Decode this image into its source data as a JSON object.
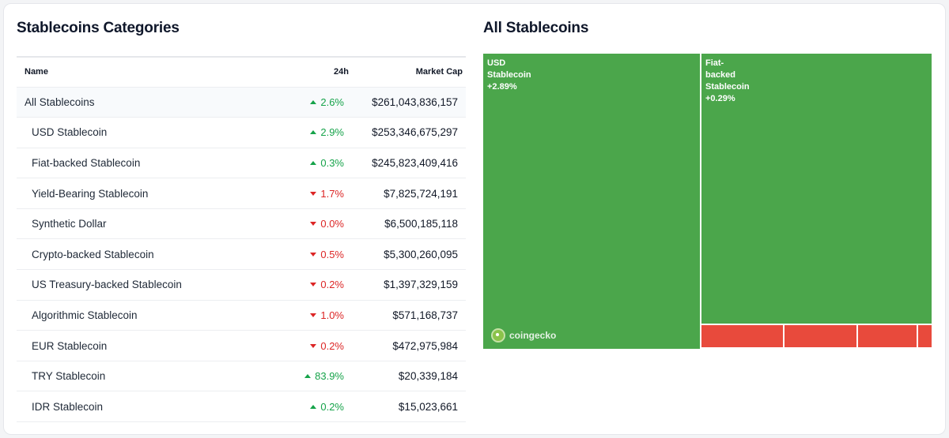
{
  "left": {
    "title": "Stablecoins Categories",
    "columns": {
      "name": "Name",
      "change": "24h",
      "market_cap": "Market Cap"
    },
    "rows": [
      {
        "name": "All Stablecoins",
        "change": "2.6%",
        "direction": "up",
        "market_cap": "$261,043,836,157"
      },
      {
        "name": "USD Stablecoin",
        "change": "2.9%",
        "direction": "up",
        "market_cap": "$253,346,675,297"
      },
      {
        "name": "Fiat-backed Stablecoin",
        "change": "0.3%",
        "direction": "up",
        "market_cap": "$245,823,409,416"
      },
      {
        "name": "Yield-Bearing Stablecoin",
        "change": "1.7%",
        "direction": "down",
        "market_cap": "$7,825,724,191"
      },
      {
        "name": "Synthetic Dollar",
        "change": "0.0%",
        "direction": "down",
        "market_cap": "$6,500,185,118"
      },
      {
        "name": "Crypto-backed Stablecoin",
        "change": "0.5%",
        "direction": "down",
        "market_cap": "$5,300,260,095"
      },
      {
        "name": "US Treasury-backed Stablecoin",
        "change": "0.2%",
        "direction": "down",
        "market_cap": "$1,397,329,159"
      },
      {
        "name": "Algorithmic Stablecoin",
        "change": "1.0%",
        "direction": "down",
        "market_cap": "$571,168,737"
      },
      {
        "name": "EUR Stablecoin",
        "change": "0.2%",
        "direction": "down",
        "market_cap": "$472,975,984"
      },
      {
        "name": "TRY Stablecoin",
        "change": "83.9%",
        "direction": "up",
        "market_cap": "$20,339,184"
      },
      {
        "name": "IDR Stablecoin",
        "change": "0.2%",
        "direction": "up",
        "market_cap": "$15,023,661"
      }
    ]
  },
  "right": {
    "title": "All Stablecoins",
    "tiles": [
      {
        "label_lines": [
          "USD",
          "Stablecoin"
        ],
        "change": "+2.89%",
        "color": "#4ba64b"
      },
      {
        "label_lines": [
          "Fiat-",
          "backed",
          "Stablecoin"
        ],
        "change": "+0.29%",
        "color": "#4ba64b"
      }
    ],
    "brand": "coingecko"
  },
  "colors": {
    "up": "#16a34a",
    "down": "#dc2626",
    "tile_green": "#4ba64b",
    "tile_red": "#e84a3c"
  }
}
